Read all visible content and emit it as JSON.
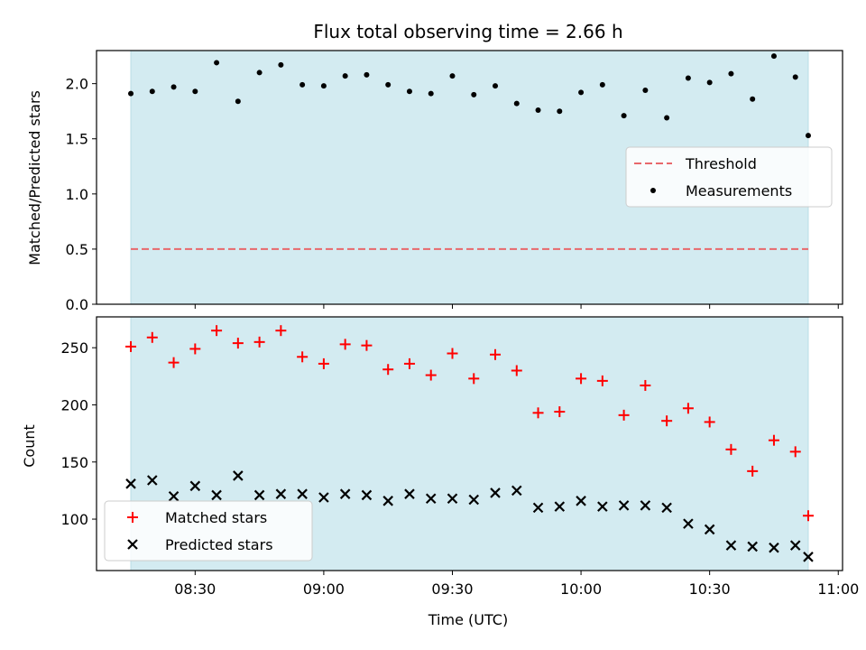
{
  "chart_data": [
    {
      "type": "scatter",
      "title": "Flux total observing time = 2.66 h",
      "ylabel": "Matched/Predicted stars",
      "xlabel": "",
      "xlim_minutes_utc": [
        487,
        661
      ],
      "ylim": [
        0,
        2.3
      ],
      "yticks": [
        0.0,
        0.5,
        1.0,
        1.5,
        2.0
      ],
      "ytick_labels": [
        "0.0",
        "0.5",
        "1.0",
        "1.5",
        "2.0"
      ],
      "shaded_span_minutes_utc": [
        495,
        653
      ],
      "shade_color": "#d3ebf1",
      "threshold": {
        "name": "Threshold",
        "value": 0.5,
        "x_range_minutes_utc": [
          495,
          653
        ],
        "color": "#e8686b"
      },
      "series": [
        {
          "name": "Measurements",
          "marker": "dot",
          "color": "#000000",
          "x": [
            495,
            500,
            505,
            510,
            515,
            520,
            525,
            530,
            535,
            540,
            545,
            550,
            555,
            560,
            565,
            570,
            575,
            580,
            585,
            590,
            595,
            600,
            605,
            610,
            615,
            620,
            625,
            630,
            635,
            640,
            645,
            650,
            653
          ],
          "y": [
            1.91,
            1.93,
            1.97,
            1.93,
            2.19,
            1.84,
            2.1,
            2.17,
            1.99,
            1.98,
            2.07,
            2.08,
            1.99,
            1.93,
            1.91,
            2.07,
            1.9,
            1.98,
            1.82,
            1.76,
            1.75,
            1.92,
            1.99,
            1.71,
            1.94,
            1.69,
            2.05,
            2.01,
            2.09,
            1.86,
            2.25,
            2.06,
            1.53
          ]
        }
      ],
      "legend": {
        "position": "center-right",
        "entries": [
          "Threshold",
          "Measurements"
        ]
      }
    },
    {
      "type": "scatter",
      "title": "",
      "ylabel": "Count",
      "xlabel": "Time (UTC)",
      "xlim_minutes_utc": [
        487,
        661
      ],
      "ylim": [
        55,
        277
      ],
      "yticks": [
        100,
        150,
        200,
        250
      ],
      "ytick_labels": [
        "100",
        "150",
        "200",
        "250"
      ],
      "xticks_minutes_utc": [
        510,
        540,
        570,
        600,
        630,
        660
      ],
      "xtick_labels": [
        "08:30",
        "09:00",
        "09:30",
        "10:00",
        "10:30",
        "11:00"
      ],
      "shaded_span_minutes_utc": [
        495,
        653
      ],
      "shade_color": "#d3ebf1",
      "series": [
        {
          "name": "Matched stars",
          "marker": "plus",
          "color": "#ff0000",
          "x": [
            495,
            500,
            505,
            510,
            515,
            520,
            525,
            530,
            535,
            540,
            545,
            550,
            555,
            560,
            565,
            570,
            575,
            580,
            585,
            590,
            595,
            600,
            605,
            610,
            615,
            620,
            625,
            630,
            635,
            640,
            645,
            650,
            653
          ],
          "y": [
            251,
            259,
            237,
            249,
            265,
            254,
            255,
            265,
            242,
            236,
            253,
            252,
            231,
            236,
            226,
            245,
            223,
            244,
            230,
            193,
            194,
            223,
            221,
            191,
            217,
            186,
            197,
            185,
            161,
            142,
            169,
            159,
            103
          ]
        },
        {
          "name": "Predicted stars",
          "marker": "x",
          "color": "#000000",
          "x": [
            495,
            500,
            505,
            510,
            515,
            520,
            525,
            530,
            535,
            540,
            545,
            550,
            555,
            560,
            565,
            570,
            575,
            580,
            585,
            590,
            595,
            600,
            605,
            610,
            615,
            620,
            625,
            630,
            635,
            640,
            645,
            650,
            653
          ],
          "y": [
            131,
            134,
            120,
            129,
            121,
            138,
            121,
            122,
            122,
            119,
            122,
            121,
            116,
            122,
            118,
            118,
            117,
            123,
            125,
            110,
            111,
            116,
            111,
            112,
            112,
            110,
            96,
            91,
            77,
            76,
            75,
            77,
            67
          ]
        }
      ],
      "legend": {
        "position": "lower-left",
        "entries": [
          "Matched stars",
          "Predicted stars"
        ]
      }
    }
  ]
}
